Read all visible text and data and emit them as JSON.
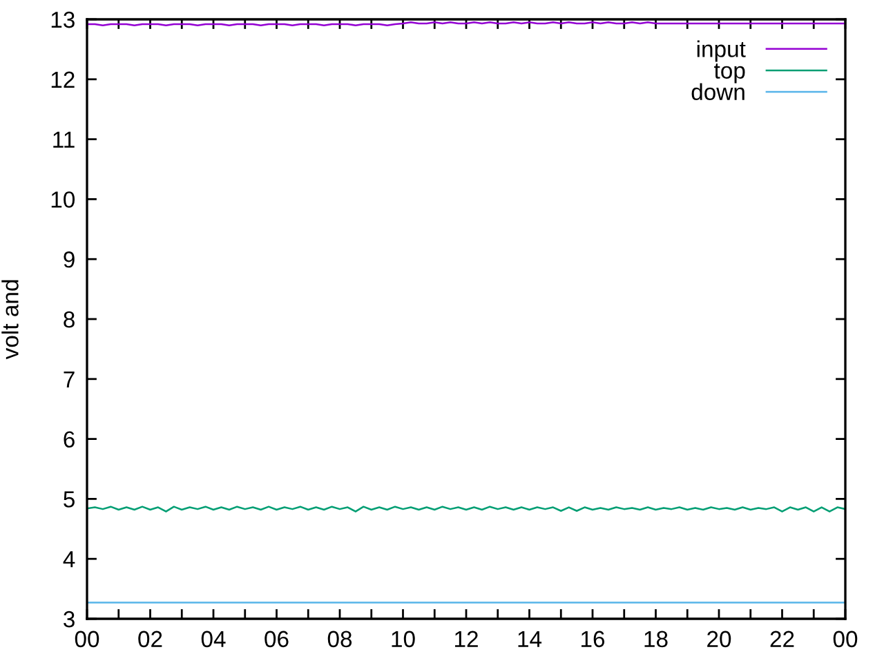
{
  "chart_data": {
    "type": "line",
    "ylabel": "volt and",
    "legend": "top right",
    "xlim": [
      0,
      24
    ],
    "ylim": [
      3,
      13
    ],
    "xticks": [
      {
        "value": 0,
        "label": "00"
      },
      {
        "value": 1,
        "label": null
      },
      {
        "value": 2,
        "label": "02"
      },
      {
        "value": 3,
        "label": null
      },
      {
        "value": 4,
        "label": "04"
      },
      {
        "value": 5,
        "label": null
      },
      {
        "value": 6,
        "label": "06"
      },
      {
        "value": 7,
        "label": null
      },
      {
        "value": 8,
        "label": "08"
      },
      {
        "value": 9,
        "label": null
      },
      {
        "value": 10,
        "label": "10"
      },
      {
        "value": 11,
        "label": null
      },
      {
        "value": 12,
        "label": "12"
      },
      {
        "value": 13,
        "label": null
      },
      {
        "value": 14,
        "label": "14"
      },
      {
        "value": 15,
        "label": null
      },
      {
        "value": 16,
        "label": "16"
      },
      {
        "value": 17,
        "label": null
      },
      {
        "value": 18,
        "label": "18"
      },
      {
        "value": 19,
        "label": null
      },
      {
        "value": 20,
        "label": "20"
      },
      {
        "value": 21,
        "label": null
      },
      {
        "value": 22,
        "label": "22"
      },
      {
        "value": 23,
        "label": null
      },
      {
        "value": 24,
        "label": "00"
      }
    ],
    "yticks": [
      3,
      4,
      5,
      6,
      7,
      8,
      9,
      10,
      11,
      12,
      13
    ],
    "series": [
      {
        "name": "input",
        "color": "#9400d3",
        "x": [
          0,
          0.25,
          0.5,
          0.75,
          1,
          1.25,
          1.5,
          1.75,
          2,
          2.25,
          2.5,
          2.75,
          3,
          3.25,
          3.5,
          3.75,
          4,
          4.25,
          4.5,
          4.75,
          5,
          5.25,
          5.5,
          5.75,
          6,
          6.25,
          6.5,
          6.75,
          7,
          7.25,
          7.5,
          7.75,
          8,
          8.25,
          8.5,
          8.75,
          9,
          9.25,
          9.5,
          9.75,
          10,
          10.25,
          10.5,
          10.75,
          11,
          11.25,
          11.5,
          11.75,
          12,
          12.25,
          12.5,
          12.75,
          13,
          13.25,
          13.5,
          13.75,
          14,
          14.25,
          14.5,
          14.75,
          15,
          15.25,
          15.5,
          15.75,
          16,
          16.25,
          16.5,
          16.75,
          17,
          17.25,
          17.5,
          17.75,
          18,
          18.25,
          18.5,
          18.75,
          19,
          19.25,
          19.5,
          19.75,
          20,
          20.25,
          20.5,
          20.75,
          21,
          21.25,
          21.5,
          21.75,
          22,
          22.25,
          22.5,
          22.75,
          23,
          23.25,
          23.5,
          23.75,
          24
        ],
        "values": [
          12.92,
          12.92,
          12.9,
          12.92,
          12.92,
          12.92,
          12.9,
          12.92,
          12.92,
          12.92,
          12.9,
          12.92,
          12.92,
          12.92,
          12.9,
          12.92,
          12.92,
          12.92,
          12.9,
          12.92,
          12.92,
          12.92,
          12.9,
          12.92,
          12.92,
          12.92,
          12.9,
          12.92,
          12.92,
          12.92,
          12.9,
          12.92,
          12.92,
          12.92,
          12.9,
          12.92,
          12.92,
          12.92,
          12.9,
          12.92,
          12.93,
          12.95,
          12.93,
          12.93,
          12.95,
          12.93,
          12.95,
          12.93,
          12.93,
          12.95,
          12.93,
          12.95,
          12.93,
          12.93,
          12.95,
          12.93,
          12.95,
          12.93,
          12.93,
          12.95,
          12.93,
          12.95,
          12.93,
          12.93,
          12.95,
          12.93,
          12.95,
          12.93,
          12.93,
          12.95,
          12.93,
          12.95,
          12.93,
          12.93,
          12.93,
          12.93,
          12.93,
          12.93,
          12.93,
          12.93,
          12.93,
          12.93,
          12.93,
          12.93,
          12.93,
          12.93,
          12.93,
          12.93,
          12.93,
          12.93,
          12.93,
          12.93,
          12.93,
          12.93,
          12.93,
          12.93,
          12.93
        ]
      },
      {
        "name": "top",
        "color": "#009e73",
        "x": [
          0,
          0.25,
          0.5,
          0.75,
          1,
          1.25,
          1.5,
          1.75,
          2,
          2.25,
          2.5,
          2.75,
          3,
          3.25,
          3.5,
          3.75,
          4,
          4.25,
          4.5,
          4.75,
          5,
          5.25,
          5.5,
          5.75,
          6,
          6.25,
          6.5,
          6.75,
          7,
          7.25,
          7.5,
          7.75,
          8,
          8.25,
          8.5,
          8.75,
          9,
          9.25,
          9.5,
          9.75,
          10,
          10.25,
          10.5,
          10.75,
          11,
          11.25,
          11.5,
          11.75,
          12,
          12.25,
          12.5,
          12.75,
          13,
          13.25,
          13.5,
          13.75,
          14,
          14.25,
          14.5,
          14.75,
          15,
          15.25,
          15.5,
          15.75,
          16,
          16.25,
          16.5,
          16.75,
          17,
          17.25,
          17.5,
          17.75,
          18,
          18.25,
          18.5,
          18.75,
          19,
          19.25,
          19.5,
          19.75,
          20,
          20.25,
          20.5,
          20.75,
          21,
          21.25,
          21.5,
          21.75,
          22,
          22.25,
          22.5,
          22.75,
          23,
          23.25,
          23.5,
          23.75,
          24
        ],
        "values": [
          4.84,
          4.86,
          4.83,
          4.87,
          4.82,
          4.86,
          4.82,
          4.87,
          4.82,
          4.86,
          4.79,
          4.87,
          4.82,
          4.86,
          4.83,
          4.87,
          4.82,
          4.86,
          4.82,
          4.87,
          4.83,
          4.86,
          4.82,
          4.87,
          4.82,
          4.86,
          4.83,
          4.87,
          4.82,
          4.86,
          4.82,
          4.87,
          4.83,
          4.86,
          4.79,
          4.87,
          4.82,
          4.86,
          4.82,
          4.87,
          4.83,
          4.86,
          4.82,
          4.86,
          4.82,
          4.87,
          4.83,
          4.86,
          4.82,
          4.86,
          4.82,
          4.87,
          4.83,
          4.86,
          4.82,
          4.86,
          4.82,
          4.86,
          4.83,
          4.86,
          4.8,
          4.86,
          4.8,
          4.86,
          4.82,
          4.85,
          4.82,
          4.86,
          4.83,
          4.85,
          4.82,
          4.86,
          4.82,
          4.85,
          4.83,
          4.86,
          4.82,
          4.85,
          4.82,
          4.86,
          4.83,
          4.85,
          4.82,
          4.86,
          4.82,
          4.85,
          4.83,
          4.86,
          4.79,
          4.86,
          4.82,
          4.86,
          4.79,
          4.86,
          4.79,
          4.86,
          4.83
        ]
      },
      {
        "name": "down",
        "color": "#56b4e9",
        "x": [
          0,
          24
        ],
        "values": [
          3.27,
          3.27
        ]
      }
    ]
  }
}
